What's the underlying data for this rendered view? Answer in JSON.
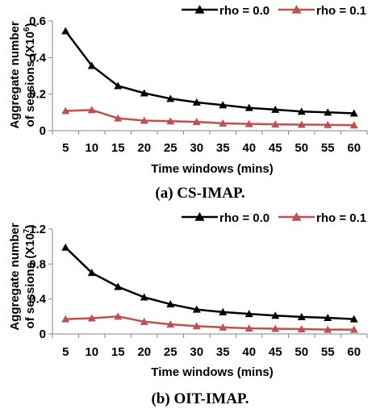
{
  "colors": {
    "series_0": "#000000",
    "series_1": "#c0504d",
    "axis": "#868686"
  },
  "chart_data": [
    {
      "type": "line",
      "caption": "(a)  CS-IMAP.",
      "xlabel": "Time windows (mins)",
      "ylabel_line1": "Aggregate number",
      "ylabel_line2_prefix": "of sessions (X10",
      "ylabel_exponent": "6",
      "ylabel_line2_suffix": ")",
      "x": [
        5,
        10,
        15,
        20,
        25,
        30,
        35,
        40,
        45,
        50,
        55,
        60
      ],
      "x_tick_labels": [
        "5",
        "10",
        "15",
        "20",
        "25",
        "30",
        "35",
        "40",
        "45",
        "50",
        "55",
        "60"
      ],
      "ylim": [
        0,
        0.6
      ],
      "y_ticks": [
        0,
        0.2,
        0.4,
        0.6
      ],
      "y_tick_labels": [
        "0",
        "0.2",
        "0.4",
        "0.6"
      ],
      "grid": false,
      "legend_position": "top-right",
      "series": [
        {
          "name": "rho = 0.0",
          "marker": "triangle",
          "values": [
            0.545,
            0.355,
            0.245,
            0.205,
            0.175,
            0.155,
            0.14,
            0.125,
            0.115,
            0.105,
            0.1,
            0.095
          ]
        },
        {
          "name": "rho = 0.1",
          "marker": "triangle",
          "values": [
            0.108,
            0.113,
            0.068,
            0.055,
            0.052,
            0.048,
            0.04,
            0.037,
            0.035,
            0.033,
            0.032,
            0.03
          ]
        }
      ]
    },
    {
      "type": "line",
      "caption": "(b)  OIT-IMAP.",
      "xlabel": "Time windows (mins)",
      "ylabel_line1": "Aggregate number",
      "ylabel_line2_prefix": "of sessions (X10",
      "ylabel_exponent": "7",
      "ylabel_line2_suffix": ")",
      "x": [
        5,
        10,
        15,
        20,
        25,
        30,
        35,
        40,
        45,
        50,
        55,
        60
      ],
      "x_tick_labels": [
        "5",
        "10",
        "15",
        "20",
        "25",
        "30",
        "35",
        "40",
        "45",
        "50",
        "55",
        "60"
      ],
      "ylim": [
        0,
        1.2
      ],
      "y_ticks": [
        0,
        0.4,
        0.8,
        1.2
      ],
      "y_tick_labels": [
        "0",
        "0.4",
        "0.8",
        "1.2"
      ],
      "grid": false,
      "legend_position": "top-right",
      "series": [
        {
          "name": "rho = 0.0",
          "marker": "triangle",
          "values": [
            0.99,
            0.7,
            0.54,
            0.42,
            0.34,
            0.28,
            0.25,
            0.23,
            0.21,
            0.195,
            0.185,
            0.17
          ]
        },
        {
          "name": "rho = 0.1",
          "marker": "triangle",
          "values": [
            0.17,
            0.18,
            0.2,
            0.14,
            0.11,
            0.09,
            0.075,
            0.065,
            0.06,
            0.055,
            0.05,
            0.05
          ]
        }
      ]
    }
  ]
}
